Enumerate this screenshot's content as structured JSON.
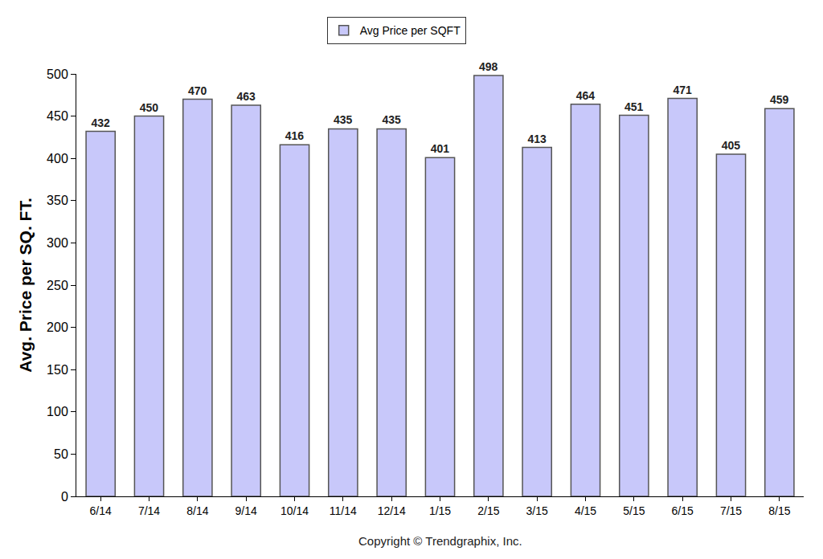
{
  "chart_data": {
    "type": "bar",
    "y_label": "Avg. Price per SQ. FT.",
    "categories": [
      "6/14",
      "7/14",
      "8/14",
      "9/14",
      "10/14",
      "11/14",
      "12/14",
      "1/15",
      "2/15",
      "3/15",
      "4/15",
      "5/15",
      "6/15",
      "7/15",
      "8/15"
    ],
    "series": [
      {
        "name": "Avg Price per SQFT",
        "color": "#c8c8fa",
        "values": [
          432,
          450,
          470,
          463,
          416,
          435,
          435,
          401,
          498,
          413,
          464,
          451,
          471,
          405,
          459
        ]
      }
    ],
    "ylim": [
      0,
      500
    ],
    "yticks": [
      0,
      50,
      100,
      150,
      200,
      250,
      300,
      350,
      400,
      450,
      500
    ],
    "grid": false,
    "legend": "top",
    "data_labels": true,
    "annotations": [
      "Copyright © Trendgraphix, Inc."
    ]
  }
}
